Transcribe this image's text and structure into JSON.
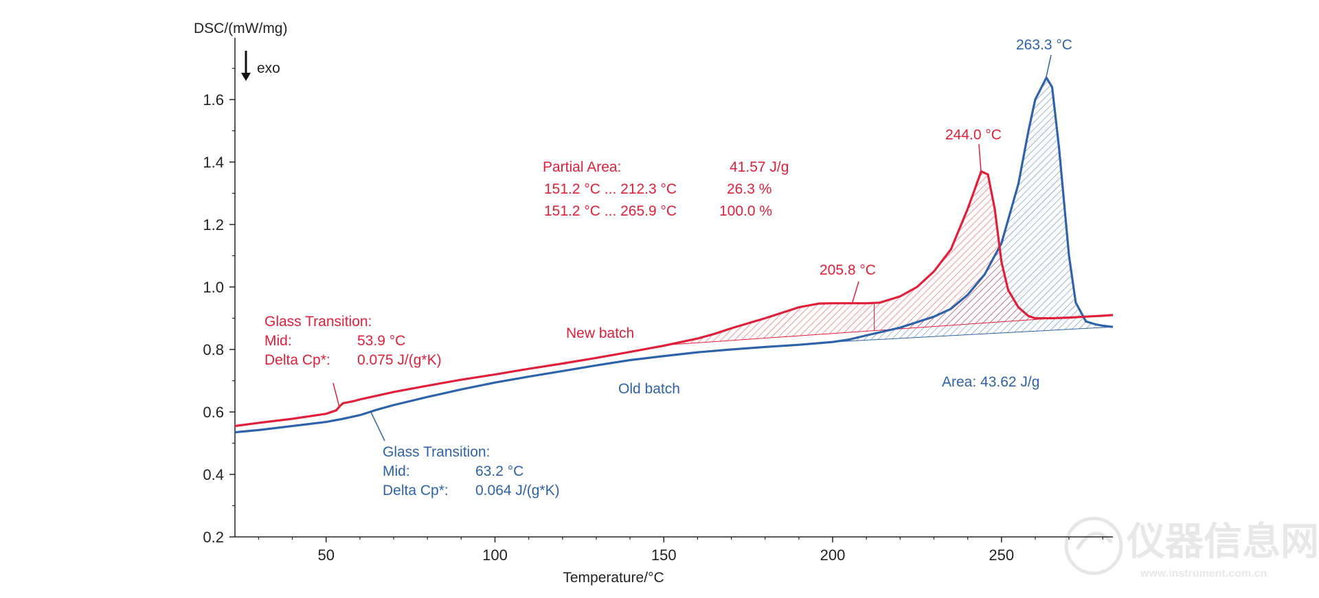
{
  "chart_data": {
    "type": "line",
    "title": "",
    "ylabel": "DSC/(mW/mg)",
    "xlabel": "Temperature/°C",
    "exo_label": "exo",
    "xlim": [
      23,
      283
    ],
    "ylim": [
      0.2,
      1.8
    ],
    "x_ticks": [
      50,
      100,
      150,
      200,
      250
    ],
    "x_tick_labels": [
      "50",
      "100",
      "150",
      "200",
      "250"
    ],
    "y_ticks": [
      0.2,
      0.4,
      0.6,
      0.8,
      1.0,
      1.2,
      1.4,
      1.6
    ],
    "y_tick_labels": [
      "0.2",
      "0.4",
      "0.6",
      "0.8",
      "1.0",
      "1.2",
      "1.4",
      "1.6"
    ],
    "grid": false,
    "series": [
      {
        "name": "New batch",
        "color": "#e0203a",
        "x": [
          23,
          30,
          40,
          50,
          53,
          54,
          55,
          58,
          60,
          70,
          80,
          90,
          100,
          110,
          120,
          130,
          140,
          150,
          160,
          165,
          170,
          180,
          190,
          196,
          200,
          205.8,
          210,
          214,
          220,
          225,
          230,
          235,
          240,
          244,
          246,
          248,
          250,
          252,
          255,
          258,
          260,
          265,
          270,
          275,
          280,
          283
        ],
        "y": [
          0.555,
          0.565,
          0.578,
          0.594,
          0.605,
          0.618,
          0.628,
          0.634,
          0.64,
          0.664,
          0.684,
          0.703,
          0.72,
          0.738,
          0.755,
          0.773,
          0.792,
          0.812,
          0.835,
          0.85,
          0.868,
          0.9,
          0.935,
          0.947,
          0.948,
          0.948,
          0.948,
          0.95,
          0.97,
          1.0,
          1.05,
          1.12,
          1.25,
          1.37,
          1.36,
          1.25,
          1.08,
          0.99,
          0.935,
          0.907,
          0.9,
          0.9,
          0.902,
          0.905,
          0.908,
          0.91
        ]
      },
      {
        "name": "Old batch",
        "color": "#2e62aa",
        "x": [
          23,
          30,
          40,
          50,
          55,
          60,
          63,
          65,
          70,
          80,
          90,
          100,
          110,
          120,
          130,
          140,
          150,
          160,
          170,
          180,
          190,
          200,
          205,
          210,
          220,
          230,
          235,
          240,
          245,
          250,
          255,
          258,
          260,
          263.3,
          265,
          267,
          270,
          272,
          275,
          278,
          280,
          283
        ],
        "y": [
          0.535,
          0.542,
          0.555,
          0.568,
          0.578,
          0.59,
          0.6,
          0.607,
          0.622,
          0.648,
          0.672,
          0.694,
          0.713,
          0.731,
          0.749,
          0.766,
          0.779,
          0.791,
          0.8,
          0.808,
          0.815,
          0.824,
          0.832,
          0.845,
          0.87,
          0.905,
          0.93,
          0.975,
          1.04,
          1.14,
          1.33,
          1.5,
          1.6,
          1.67,
          1.64,
          1.45,
          1.1,
          0.95,
          0.89,
          0.88,
          0.876,
          0.872
        ]
      }
    ],
    "annotations": {
      "new_glass": [
        "Glass Transition:",
        "Mid:",
        "53.9 °C",
        "Delta Cp*:",
        "0.075 J/(g*K)"
      ],
      "old_glass": [
        "Glass Transition:",
        "Mid:",
        "63.2 °C",
        "Delta Cp*:",
        "0.064 J/(g*K)"
      ],
      "partial_area": [
        "Partial Area:",
        "41.57 J/g",
        "151.2 °C ... 212.3 °C",
        "26.3 %",
        "151.2 °C ... 265.9 °C",
        "100.0 %"
      ],
      "red_peak_1": "205.8 °C",
      "red_peak_2": "244.0 °C",
      "blue_peak": "263.3 °C",
      "new_batch_label": "New batch",
      "old_batch_label": "Old batch",
      "area_label": "Area: 43.62 J/g"
    }
  },
  "watermark": {
    "text": "仪器信息网",
    "subtext": "www.instrument.com.cn"
  }
}
